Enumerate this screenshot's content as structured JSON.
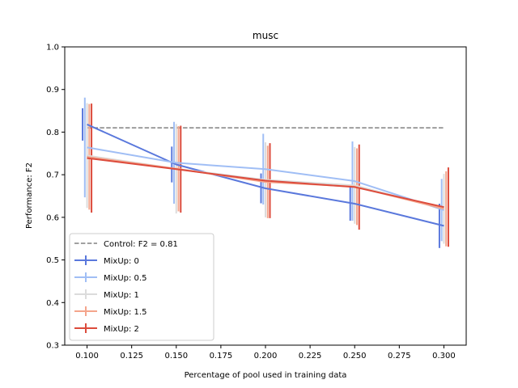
{
  "chart_data": {
    "type": "line",
    "title": "musc",
    "xlabel": "Percentage of pool used in training data",
    "ylabel": "Performance: F2",
    "xlim": [
      0.0875,
      0.3125
    ],
    "ylim": [
      0.3,
      1.0
    ],
    "xticks": [
      "0.100",
      "0.125",
      "0.150",
      "0.175",
      "0.200",
      "0.225",
      "0.250",
      "0.275",
      "0.300"
    ],
    "yticks": [
      "0.3",
      "0.4",
      "0.5",
      "0.6",
      "0.7",
      "0.8",
      "0.9",
      "1.0"
    ],
    "grid": false,
    "legend_placement": "lower-left",
    "control": {
      "name": "Control: F2 = 0.81",
      "value": 0.81,
      "color": "#808080",
      "x_range": [
        0.1,
        0.3
      ]
    },
    "x": [
      0.1,
      0.15,
      0.2,
      0.25,
      0.3
    ],
    "series": [
      {
        "name": "MixUp: 0",
        "color": "#5a78dc",
        "offset": -0.0025,
        "values": [
          0.818,
          0.724,
          0.668,
          0.632,
          0.58
        ],
        "err": [
          0.038,
          0.042,
          0.035,
          0.04,
          0.052
        ]
      },
      {
        "name": "MixUp: 0.5",
        "color": "#a0bef5",
        "offset": -0.00125,
        "values": [
          0.764,
          0.728,
          0.713,
          0.685,
          0.617
        ],
        "err": [
          0.117,
          0.096,
          0.083,
          0.093,
          0.073
        ]
      },
      {
        "name": "MixUp: 1",
        "color": "#dcdcdc",
        "offset": 0.0,
        "values": [
          0.745,
          0.714,
          0.688,
          0.675,
          0.62
        ],
        "err": [
          0.123,
          0.105,
          0.088,
          0.09,
          0.082
        ]
      },
      {
        "name": "MixUp: 1.5",
        "color": "#f4a58c",
        "offset": 0.00125,
        "values": [
          0.742,
          0.714,
          0.683,
          0.672,
          0.62
        ],
        "err": [
          0.124,
          0.1,
          0.085,
          0.09,
          0.088
        ]
      },
      {
        "name": "MixUp: 2",
        "color": "#dc4b3c",
        "offset": 0.0025,
        "values": [
          0.739,
          0.713,
          0.686,
          0.671,
          0.624
        ],
        "err": [
          0.128,
          0.102,
          0.088,
          0.1,
          0.093
        ]
      }
    ]
  }
}
